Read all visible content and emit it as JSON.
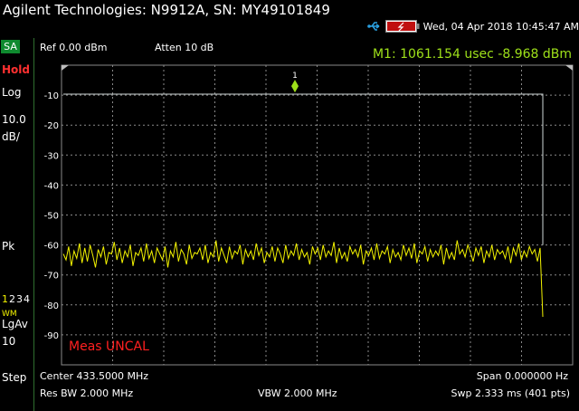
{
  "title_bar": {
    "title": "Agilent Technologies: N9912A, SN: MY49101849",
    "datetime": "Wed, 04 Apr 2018 10:45:47 AM"
  },
  "icons": {
    "usb": "usb-icon",
    "battery": "battery-charging-icon"
  },
  "side_panel": {
    "mode": "SA",
    "hold": "Hold",
    "scale_type": "Log",
    "scale_value": "10.0",
    "scale_unit": "dB/",
    "detector": "Pk",
    "traces": [
      "1",
      "2",
      "3",
      "4"
    ],
    "trace_state": "WM",
    "averaging": "LgAv",
    "avg_count": "10",
    "step": "Step"
  },
  "header": {
    "ref_level": "Ref 0.00 dBm",
    "atten": "Atten 10 dB",
    "marker_readout": "M1:  1061.154 usec  -8.968 dBm"
  },
  "plot": {
    "marker_label": "1",
    "uncal_message": "Meas UNCAL",
    "y_ticks": [
      "-10",
      "-20",
      "-30",
      "-40",
      "-50",
      "-60",
      "-70",
      "-80",
      "-90"
    ]
  },
  "footer": {
    "center": "Center 433.5000 MHz",
    "span": "Span 0.000000  Hz",
    "res_bw": "Res BW 2.000 MHz",
    "vbw": "VBW 2.000 MHz",
    "sweep": "Swp 2.333 ms (401 pts)"
  },
  "colors": {
    "trace": "#f3f300",
    "marker": "#9ee01a",
    "grid": "#8a8a8a",
    "uncal": "#ff2020",
    "mode_badge": "#0f8a2f"
  },
  "chart_data": {
    "type": "line",
    "ylim": [
      -100,
      0
    ],
    "ylabel_ticks": [
      "-10",
      "-20",
      "-30",
      "-40",
      "-50",
      "-60",
      "-70",
      "-80",
      "-90"
    ],
    "scale": "10.0 dB/div",
    "reference_level_dBm": 0,
    "series": [
      {
        "values": [
          -63.0,
          -65.0,
          -60.5,
          -67.0,
          -62.0,
          -64.5,
          -59.5,
          -66.0,
          -61.0,
          -65.5,
          -60.0,
          -63.5,
          -67.5,
          -61.5,
          -64.0,
          -60.5,
          -66.5,
          -62.5,
          -63.0,
          -59.0,
          -65.0,
          -61.0,
          -66.0,
          -62.0,
          -64.0,
          -60.0,
          -67.0,
          -62.5,
          -63.5,
          -61.0,
          -65.5,
          -59.5,
          -64.5,
          -62.0,
          -66.0,
          -61.0,
          -63.0,
          -65.0,
          -60.5,
          -67.5,
          -62.0,
          -64.0,
          -59.0,
          -65.5,
          -61.5,
          -63.0,
          -66.5,
          -60.0,
          -64.5,
          -62.5,
          -63.0,
          -61.0,
          -65.0,
          -60.0,
          -66.0,
          -62.5,
          -64.0,
          -58.5,
          -65.5,
          -61.0,
          -63.5,
          -66.0,
          -60.5,
          -64.5,
          -62.0,
          -63.0,
          -60.0,
          -66.5,
          -61.5,
          -64.0,
          -62.0,
          -65.0,
          -59.5,
          -63.5,
          -61.0,
          -66.0,
          -62.5,
          -64.0,
          -60.5,
          -65.5,
          -61.0,
          -63.0,
          -66.0,
          -60.0,
          -64.5,
          -62.0,
          -63.5,
          -59.5,
          -65.0,
          -61.5,
          -64.0,
          -62.5,
          -66.5,
          -60.5,
          -63.0,
          -61.0,
          -65.0,
          -60.0,
          -64.0,
          -62.0,
          -63.5,
          -59.0,
          -66.0,
          -61.0,
          -64.5,
          -62.5,
          -65.5,
          -60.5,
          -63.0,
          -61.5,
          -64.0,
          -60.0,
          -66.5,
          -62.0,
          -63.5,
          -61.0,
          -65.0,
          -59.5,
          -64.5,
          -62.0,
          -63.0,
          -60.5,
          -66.0,
          -61.5,
          -64.0,
          -62.5,
          -65.0,
          -60.0,
          -63.5,
          -61.0,
          -64.5,
          -59.5,
          -66.0,
          -62.0,
          -63.0,
          -60.5,
          -65.5,
          -61.5,
          -64.0,
          -62.0,
          -63.5,
          -60.0,
          -66.5,
          -61.0,
          -64.5,
          -62.5,
          -65.0,
          -58.5,
          -63.0,
          -61.5,
          -64.0,
          -60.0,
          -62.5,
          -65.5,
          -61.0,
          -63.5,
          -60.5,
          -66.0,
          -62.0,
          -64.0,
          -60.0,
          -65.0,
          -61.5,
          -63.0,
          -62.0,
          -64.5,
          -60.5,
          -66.0,
          -61.0,
          -63.5,
          -59.5,
          -65.0,
          -62.0,
          -64.0,
          -60.5,
          -63.0,
          -61.5,
          -65.5,
          -61.0,
          -84.0
        ]
      }
    ],
    "marker": {
      "label": "M1",
      "x": "1061.154 usec",
      "y_dBm": -8.968
    }
  }
}
